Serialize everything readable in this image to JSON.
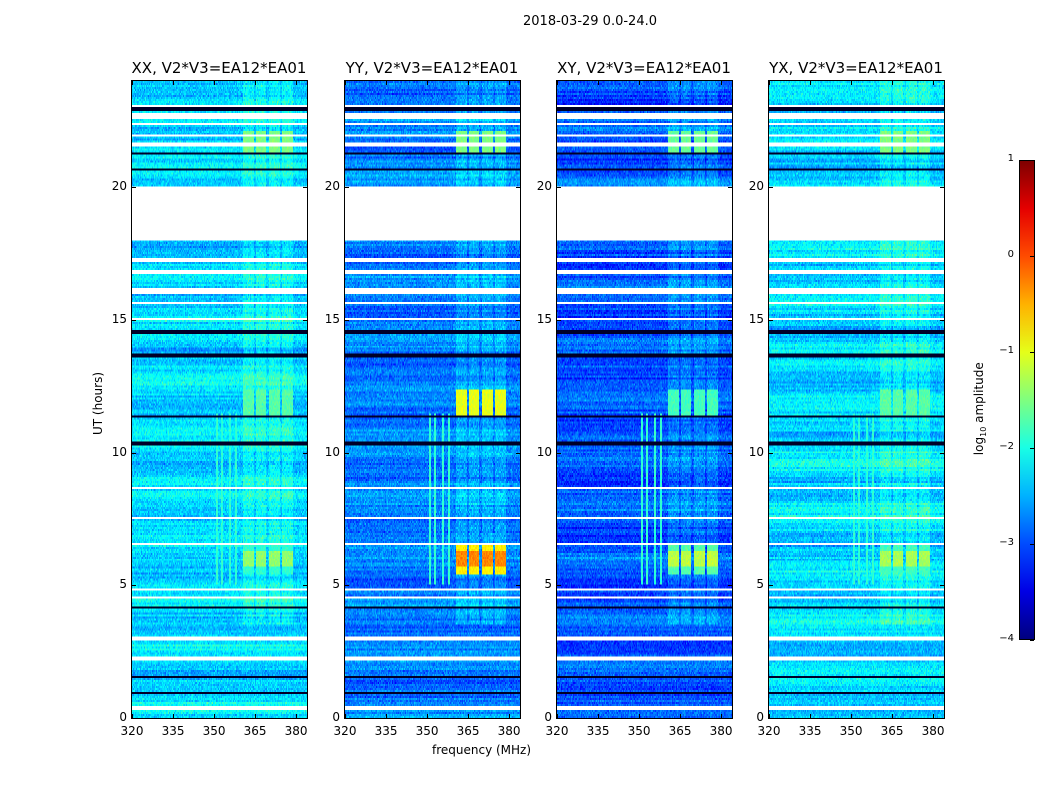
{
  "suptitle": "2018-03-29 0.0-24.0",
  "chart_data": {
    "type": "heatmap",
    "title": "2018-03-29 0.0-24.0",
    "xlabel": "frequency (MHz)",
    "ylabel": "UT (hours)",
    "xlim": [
      320,
      384
    ],
    "ylim": [
      0,
      24
    ],
    "xticks": [
      "320",
      "335",
      "350",
      "365",
      "380"
    ],
    "xtick_values": [
      320,
      335,
      350,
      365,
      380
    ],
    "yticks": [
      "0",
      "5",
      "10",
      "15",
      "20"
    ],
    "ytick_values": [
      0,
      5,
      10,
      15,
      20
    ],
    "colorbar": {
      "label": "log10 amplitude",
      "label_main": "log",
      "label_sub": "10",
      "label_rest": " amplitude",
      "colormap": "jet",
      "range": [
        -4,
        1
      ],
      "ticks": [
        "1",
        "0",
        "−1",
        "−2",
        "−3",
        "−4"
      ],
      "tick_values": [
        1,
        0,
        -1,
        -2,
        -3,
        -4
      ]
    },
    "flagged_time_ranges_hours": [
      [
        0.3,
        0.45
      ],
      [
        2.2,
        2.3
      ],
      [
        2.95,
        3.1
      ],
      [
        4.5,
        4.6
      ],
      [
        4.8,
        4.9
      ],
      [
        6.5,
        6.6
      ],
      [
        7.5,
        7.6
      ],
      [
        8.6,
        8.7
      ],
      [
        15.0,
        15.1
      ],
      [
        15.6,
        15.7
      ],
      [
        16.0,
        16.2
      ],
      [
        16.75,
        16.85
      ],
      [
        17.2,
        17.3
      ],
      [
        18.0,
        20.05
      ],
      [
        21.5,
        21.7
      ],
      [
        21.9,
        22.0
      ],
      [
        22.35,
        22.45
      ],
      [
        22.6,
        22.8
      ],
      [
        23.0,
        23.1
      ]
    ],
    "zero_time_ranges_hours": [
      [
        0.9,
        1.0
      ],
      [
        1.5,
        1.6
      ],
      [
        4.1,
        4.2
      ],
      [
        10.3,
        10.4
      ],
      [
        11.3,
        11.4
      ],
      [
        13.6,
        13.7
      ],
      [
        14.5,
        14.6
      ],
      [
        20.6,
        20.7
      ],
      [
        21.2,
        21.3
      ],
      [
        22.9,
        23.0
      ]
    ],
    "rfi_subbands_mhz": [
      [
        360.5,
        364.5
      ],
      [
        365.5,
        369
      ],
      [
        370,
        374
      ],
      [
        375,
        379
      ]
    ],
    "rfi_lines_mhz": [
      351,
      353,
      356,
      358
    ],
    "series": [
      {
        "name": "XX, V2*V3=EA12*EA01",
        "baseline": -2.3,
        "rfi_peak_5_6.5h": -1.4,
        "rfi_peak_11.5_12.3h": -1.7,
        "rfi_peak_21.3_22h": -1.5
      },
      {
        "name": "YY, V2*V3=EA12*EA01",
        "baseline": -2.75,
        "rfi_peak_5_6.5h": -0.3,
        "rfi_peak_11.5_12.3h": -1.0,
        "rfi_peak_21.3_22h": -1.5
      },
      {
        "name": "XY, V2*V3=EA12*EA01",
        "baseline": -2.95,
        "rfi_peak_5_6.5h": -1.2,
        "rfi_peak_11.5_12.3h": -1.8,
        "rfi_peak_21.3_22h": -1.6
      },
      {
        "name": "YX, V2*V3=EA12*EA01",
        "baseline": -2.3,
        "rfi_peak_5_6.5h": -1.3,
        "rfi_peak_11.5_12.3h": -1.7,
        "rfi_peak_21.3_22h": -1.5
      }
    ]
  }
}
